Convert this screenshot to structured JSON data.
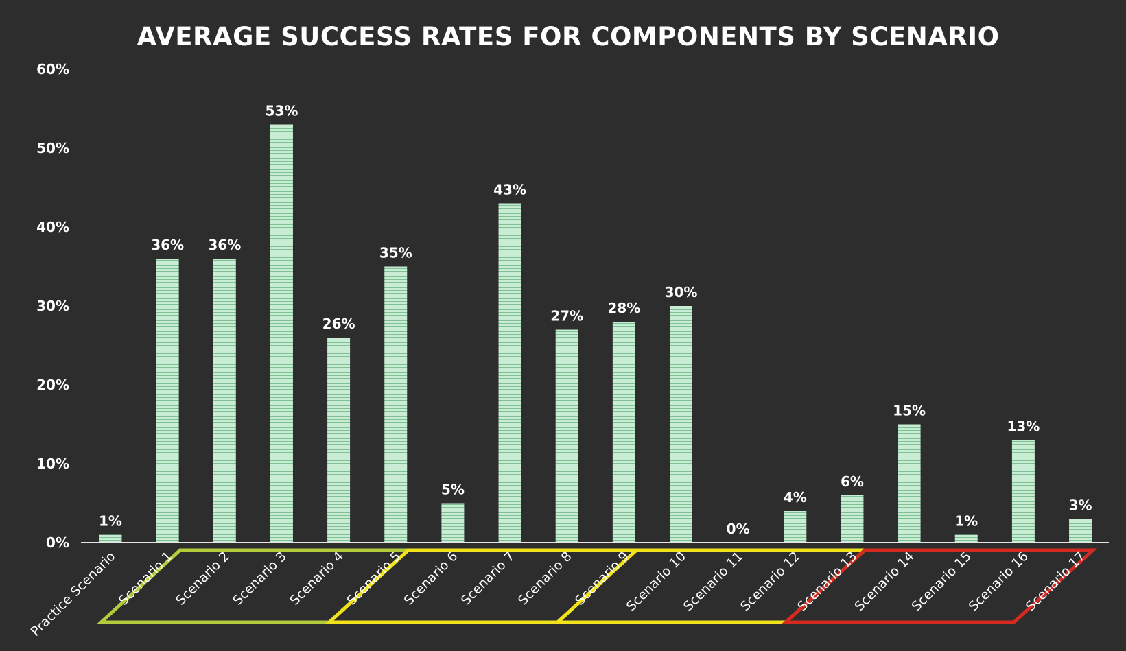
{
  "chart_data": {
    "type": "bar",
    "title": "AVERAGE SUCCESS RATES FOR COMPONENTS BY SCENARIO",
    "xlabel": "",
    "ylabel": "",
    "ylim": [
      0,
      60
    ],
    "y_ticks": [
      0,
      10,
      20,
      30,
      40,
      50,
      60
    ],
    "y_tick_labels": [
      "0%",
      "10%",
      "20%",
      "30%",
      "40%",
      "50%",
      "60%"
    ],
    "categories": [
      "Practice Scenario",
      "Scenario 1",
      "Scenario 2",
      "Scenario 3",
      "Scenario 4",
      "Scenario 5",
      "Scenario 6",
      "Scenario 7",
      "Scenario 8",
      "Scenario 9",
      "Scenario 10",
      "Scenario 11",
      "Scenario 12",
      "Scenario 13",
      "Scenario 14",
      "Scenario 15",
      "Scenario 16",
      "Scenario 17"
    ],
    "values": [
      1,
      36,
      36,
      53,
      26,
      35,
      5,
      43,
      27,
      28,
      30,
      0,
      4,
      6,
      15,
      1,
      13,
      3
    ],
    "value_labels": [
      "1%",
      "36%",
      "36%",
      "53%",
      "26%",
      "35%",
      "5%",
      "43%",
      "27%",
      "28%",
      "30%",
      "0%",
      "4%",
      "6%",
      "15%",
      "1%",
      "13%",
      "3%"
    ],
    "bar_color": "#c8ecd4",
    "bar_stripe_color": "#7fbf94",
    "background_color": "#2d2d2d",
    "text_color": "#ffffff",
    "groups": [
      {
        "name": "group-green",
        "from": 1,
        "to": 4,
        "color": "#b4cc3c"
      },
      {
        "name": "group-yellow-a",
        "from": 5,
        "to": 8,
        "color": "#f2e21b"
      },
      {
        "name": "group-yellow-b",
        "from": 9,
        "to": 12,
        "color": "#f2e21b"
      },
      {
        "name": "group-red",
        "from": 13,
        "to": 16,
        "color": "#d42a22"
      }
    ],
    "grid": false
  }
}
